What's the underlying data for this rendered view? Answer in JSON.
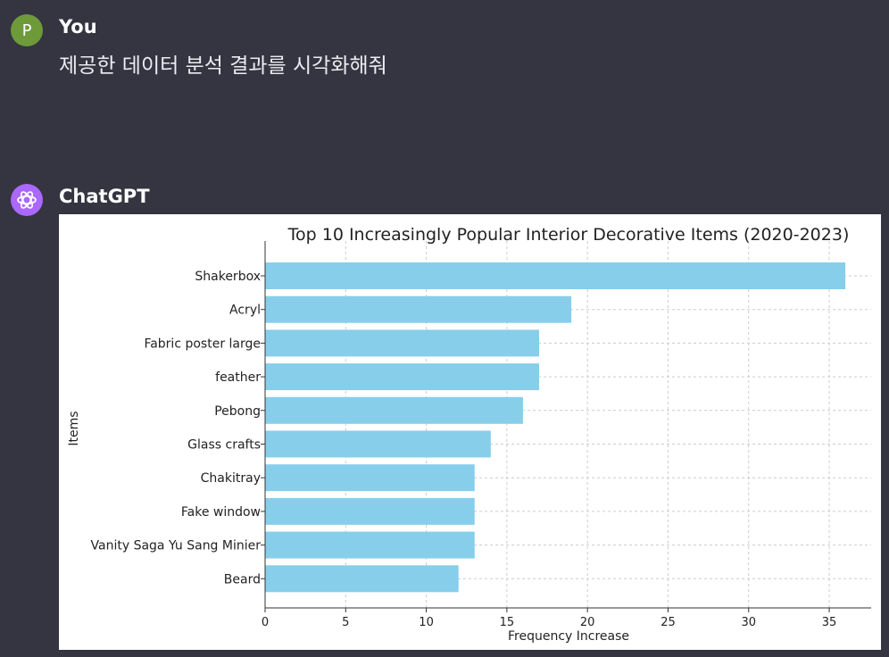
{
  "conversation": {
    "user": {
      "author": "You",
      "avatar_letter": "P",
      "message": "제공한 데이터 분석 결과를 시각화해줘"
    },
    "assistant": {
      "author": "ChatGPT",
      "avatar_icon": "openai-logo-icon"
    }
  },
  "colors": {
    "background": "#343541",
    "user_avatar": "#6e9a3a",
    "assistant_avatar": "#ab68ff",
    "bar": "#87ceeb"
  },
  "chart_data": {
    "type": "bar",
    "orientation": "horizontal",
    "title": "Top 10 Increasingly Popular Interior Decorative Items (2020-2023)",
    "xlabel": "Frequency Increase",
    "ylabel": "Items",
    "categories": [
      "Shakerbox",
      "Acryl",
      "Fabric poster large",
      "feather",
      "Pebong",
      "Glass crafts",
      "Chakitray",
      "Fake window",
      "Vanity Saga Yu Sang Minier",
      "Beard"
    ],
    "values": [
      36,
      19,
      17,
      17,
      16,
      14,
      13,
      13,
      13,
      12
    ],
    "xticks": [
      0,
      5,
      10,
      15,
      20,
      25,
      30,
      35
    ],
    "xlim": [
      0,
      37.6
    ],
    "grid": true
  }
}
